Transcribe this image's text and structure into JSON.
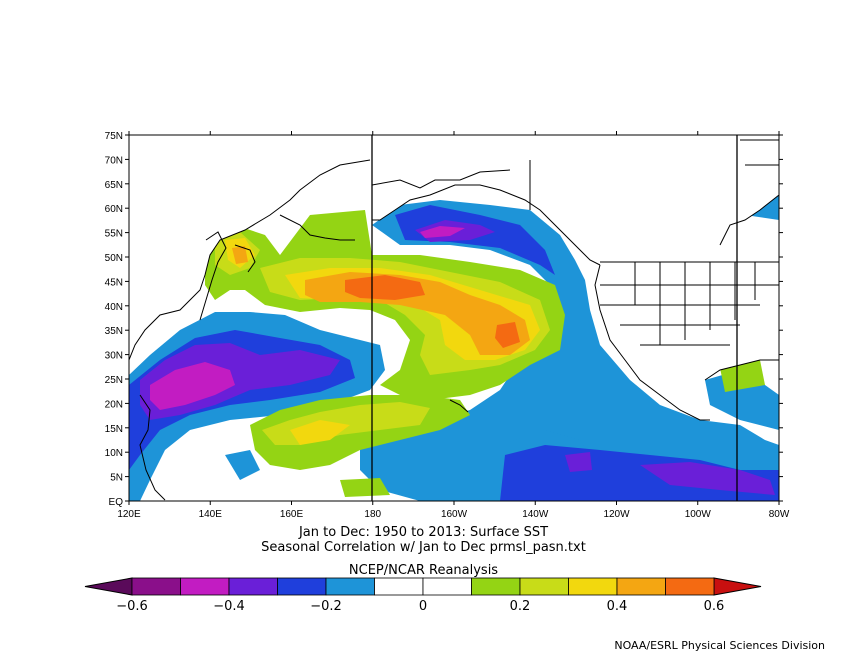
{
  "map": {
    "lat_labels": [
      "75N",
      "70N",
      "65N",
      "60N",
      "55N",
      "50N",
      "45N",
      "40N",
      "35N",
      "30N",
      "25N",
      "20N",
      "15N",
      "10N",
      "5N",
      "EQ"
    ],
    "lon_labels": [
      "120E",
      "140E",
      "160E",
      "180",
      "160W",
      "140W",
      "120W",
      "100W",
      "80W"
    ],
    "lat_range": [
      0,
      75
    ],
    "lon_range_east": [
      120,
      280
    ]
  },
  "caption": {
    "line1": "Jan to Dec: 1950 to 2013: Surface SST",
    "line2": "Seasonal Correlation w/ Jan to Dec prmsl_pasn.txt",
    "line3": "NCEP/NCAR Reanalysis"
  },
  "colorbar": {
    "labels": [
      "−0.6",
      "−0.4",
      "−0.2",
      "0",
      "0.2",
      "0.4",
      "0.6"
    ],
    "colors": [
      "#8a0f8a",
      "#c21cc2",
      "#6a1fd8",
      "#1f3fdc",
      "#1e94d8",
      "#ffffff",
      "#ffffff",
      "#94d414",
      "#c8dc18",
      "#f2d80e",
      "#f4a612",
      "#f46a12"
    ],
    "low_color": "#5a0a5a",
    "high_color": "#c81010"
  },
  "credit": "NOAA/ESRL Physical Sciences Division"
}
